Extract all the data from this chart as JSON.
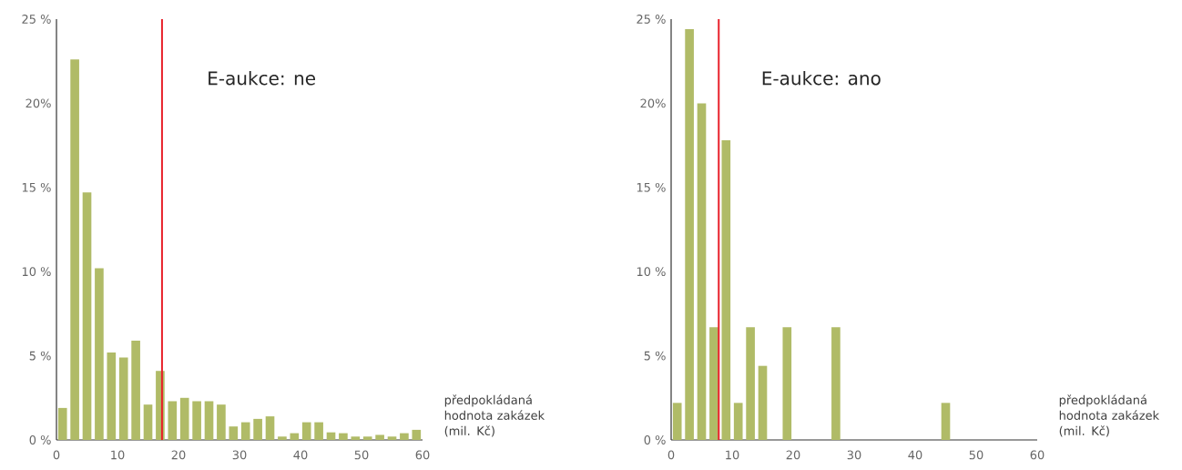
{
  "chart_data": [
    {
      "type": "histogram",
      "bins": [
        0,
        2,
        4,
        6,
        8,
        10,
        12,
        14,
        16,
        18,
        20,
        22,
        24,
        26,
        28,
        30,
        32,
        34,
        36,
        38,
        40,
        42,
        44,
        46,
        48,
        50,
        52,
        54,
        56,
        58,
        60
      ],
      "values": [
        1.9,
        22.6,
        14.7,
        10.2,
        5.2,
        4.9,
        5.9,
        2.1,
        4.1,
        2.3,
        2.5,
        2.3,
        2.3,
        2.1,
        0.8,
        1.05,
        1.25,
        1.4,
        0.2,
        0.4,
        1.05,
        1.05,
        0.45,
        0.4,
        0.2,
        0.2,
        0.3,
        0.2,
        0.4,
        0.6
      ],
      "color": "#b0bb67",
      "xlim": [
        0,
        60
      ],
      "xticks": [
        0,
        10,
        20,
        30,
        40,
        50,
        60
      ],
      "ylim": [
        0,
        25
      ],
      "yticks": [
        {
          "value": 0,
          "label": "0 %"
        },
        {
          "value": 5,
          "label": "5 %"
        },
        {
          "value": 10,
          "label": "10 %"
        },
        {
          "value": 15,
          "label": "15 %"
        },
        {
          "value": 20,
          "label": "20%"
        },
        {
          "value": 25,
          "label": "25 %"
        }
      ],
      "xlabel": "předpokládaná hodnota zakázek (mil. Kč)",
      "annotations": [
        "E-aukce: ne"
      ],
      "ref_lines": [
        {
          "axis": "x",
          "value": 17.3,
          "color": "#e8202a"
        }
      ]
    },
    {
      "type": "histogram",
      "bins": [
        0,
        2,
        4,
        6,
        8,
        10,
        12,
        14,
        16,
        18,
        20,
        22,
        24,
        26,
        28,
        30,
        32,
        34,
        36,
        38,
        40,
        42,
        44,
        46,
        48,
        50,
        52,
        54,
        56,
        58,
        60
      ],
      "values": [
        2.2,
        24.4,
        20,
        6.7,
        17.8,
        2.2,
        6.7,
        4.4,
        0,
        6.7,
        0,
        0,
        0,
        6.7,
        0,
        0,
        0,
        0,
        0,
        0,
        0,
        0,
        2.2,
        0,
        0,
        0,
        0,
        0,
        0,
        0
      ],
      "color": "#b0bb67",
      "xlim": [
        0,
        60
      ],
      "xticks": [
        0,
        10,
        20,
        30,
        40,
        50,
        60
      ],
      "ylim": [
        0,
        25
      ],
      "yticks": [
        {
          "value": 0,
          "label": "0 %"
        },
        {
          "value": 5,
          "label": "5 %"
        },
        {
          "value": 10,
          "label": "10 %"
        },
        {
          "value": 15,
          "label": "15 %"
        },
        {
          "value": 20,
          "label": "20%"
        },
        {
          "value": 25,
          "label": "25 %"
        }
      ],
      "xlabel": "předpokládaná hodnota zakázek (mil. Kč)",
      "annotations": [
        "E-aukce: ano"
      ],
      "ref_lines": [
        {
          "axis": "x",
          "value": 7.8,
          "color": "#e8202a"
        }
      ]
    }
  ]
}
